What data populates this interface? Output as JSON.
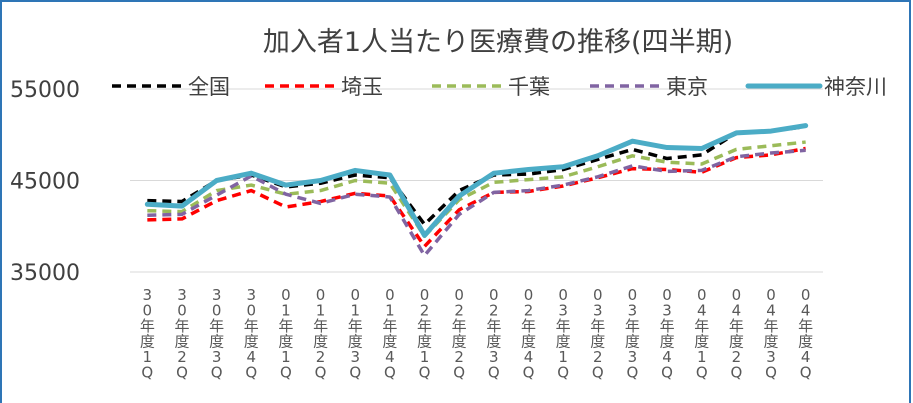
{
  "chart_data": {
    "type": "line",
    "title": "加入者1人当たり医療費の推移(四半期)",
    "xlabel": "",
    "ylabel": "",
    "ylim": [
      35000,
      55000
    ],
    "yticks": [
      "55000",
      "45000",
      "35000"
    ],
    "grid": true,
    "legend": "top",
    "categories": [
      "30年度1Q",
      "30年度2Q",
      "30年度3Q",
      "30年度4Q",
      "01年度1Q",
      "01年度2Q",
      "01年度3Q",
      "01年度4Q",
      "02年度1Q",
      "02年度2Q",
      "02年度3Q",
      "02年度4Q",
      "03年度1Q",
      "03年度2Q",
      "03年度3Q",
      "03年度4Q",
      "04年度1Q",
      "04年度2Q",
      "04年度3Q",
      "04年度4Q"
    ],
    "series": [
      {
        "name": "全国",
        "color": "#000000",
        "dash": "dashed",
        "values": [
          42800,
          42700,
          45000,
          45600,
          44300,
          44700,
          45600,
          45300,
          40200,
          43900,
          45600,
          45700,
          46200,
          47300,
          48400,
          47400,
          47800,
          50200,
          50400,
          50900
        ]
      },
      {
        "name": "埼玉",
        "color": "#ff0000",
        "dash": "dashed",
        "values": [
          40700,
          40800,
          42800,
          43900,
          42100,
          42700,
          43600,
          43300,
          37800,
          41800,
          43700,
          43800,
          44400,
          45300,
          46300,
          46200,
          45900,
          47500,
          47800,
          48500
        ]
      },
      {
        "name": "千葉",
        "color": "#9bbb59",
        "dash": "dashed",
        "values": [
          41700,
          41600,
          43900,
          44500,
          43500,
          43900,
          45000,
          44700,
          38900,
          42900,
          44800,
          45100,
          45400,
          46500,
          47700,
          47000,
          46800,
          48400,
          48800,
          49200
        ]
      },
      {
        "name": "東京",
        "color": "#8064a2",
        "dash": "dashed",
        "values": [
          41200,
          41300,
          43400,
          45500,
          43500,
          42500,
          43500,
          43200,
          36800,
          41300,
          43700,
          43900,
          44500,
          45400,
          46600,
          46000,
          46100,
          47600,
          48000,
          48300
        ]
      },
      {
        "name": "神奈川",
        "color": "#4bacc6",
        "dash": "solid",
        "values": [
          42400,
          42200,
          45000,
          45800,
          44500,
          45000,
          46100,
          45600,
          39000,
          43300,
          45800,
          46200,
          46500,
          47700,
          49300,
          48600,
          48500,
          50200,
          50400,
          51000
        ]
      }
    ]
  }
}
